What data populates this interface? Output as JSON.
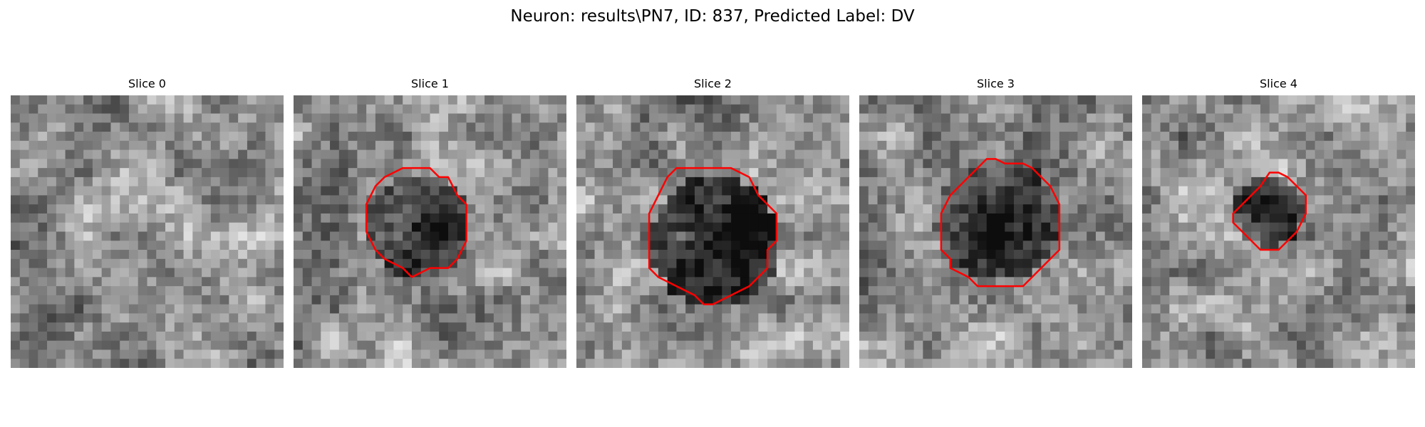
{
  "figure": {
    "title": "Neuron: results\\PN7, ID: 837, Predicted Label: DV"
  },
  "colors": {
    "background": "#ffffff",
    "contour": "#ff0000"
  },
  "panels": [
    {
      "title": "Slice 0",
      "has_contour": false,
      "seed": 11,
      "dark_blob": 0.0
    },
    {
      "title": "Slice 1",
      "has_contour": true,
      "seed": 23,
      "dark_blob": 0.45
    },
    {
      "title": "Slice 2",
      "has_contour": true,
      "seed": 37,
      "dark_blob": 0.5
    },
    {
      "title": "Slice 3",
      "has_contour": true,
      "seed": 53,
      "dark_blob": 0.35
    },
    {
      "title": "Slice 4",
      "has_contour": true,
      "seed": 71,
      "dark_blob": 0.4
    }
  ]
}
